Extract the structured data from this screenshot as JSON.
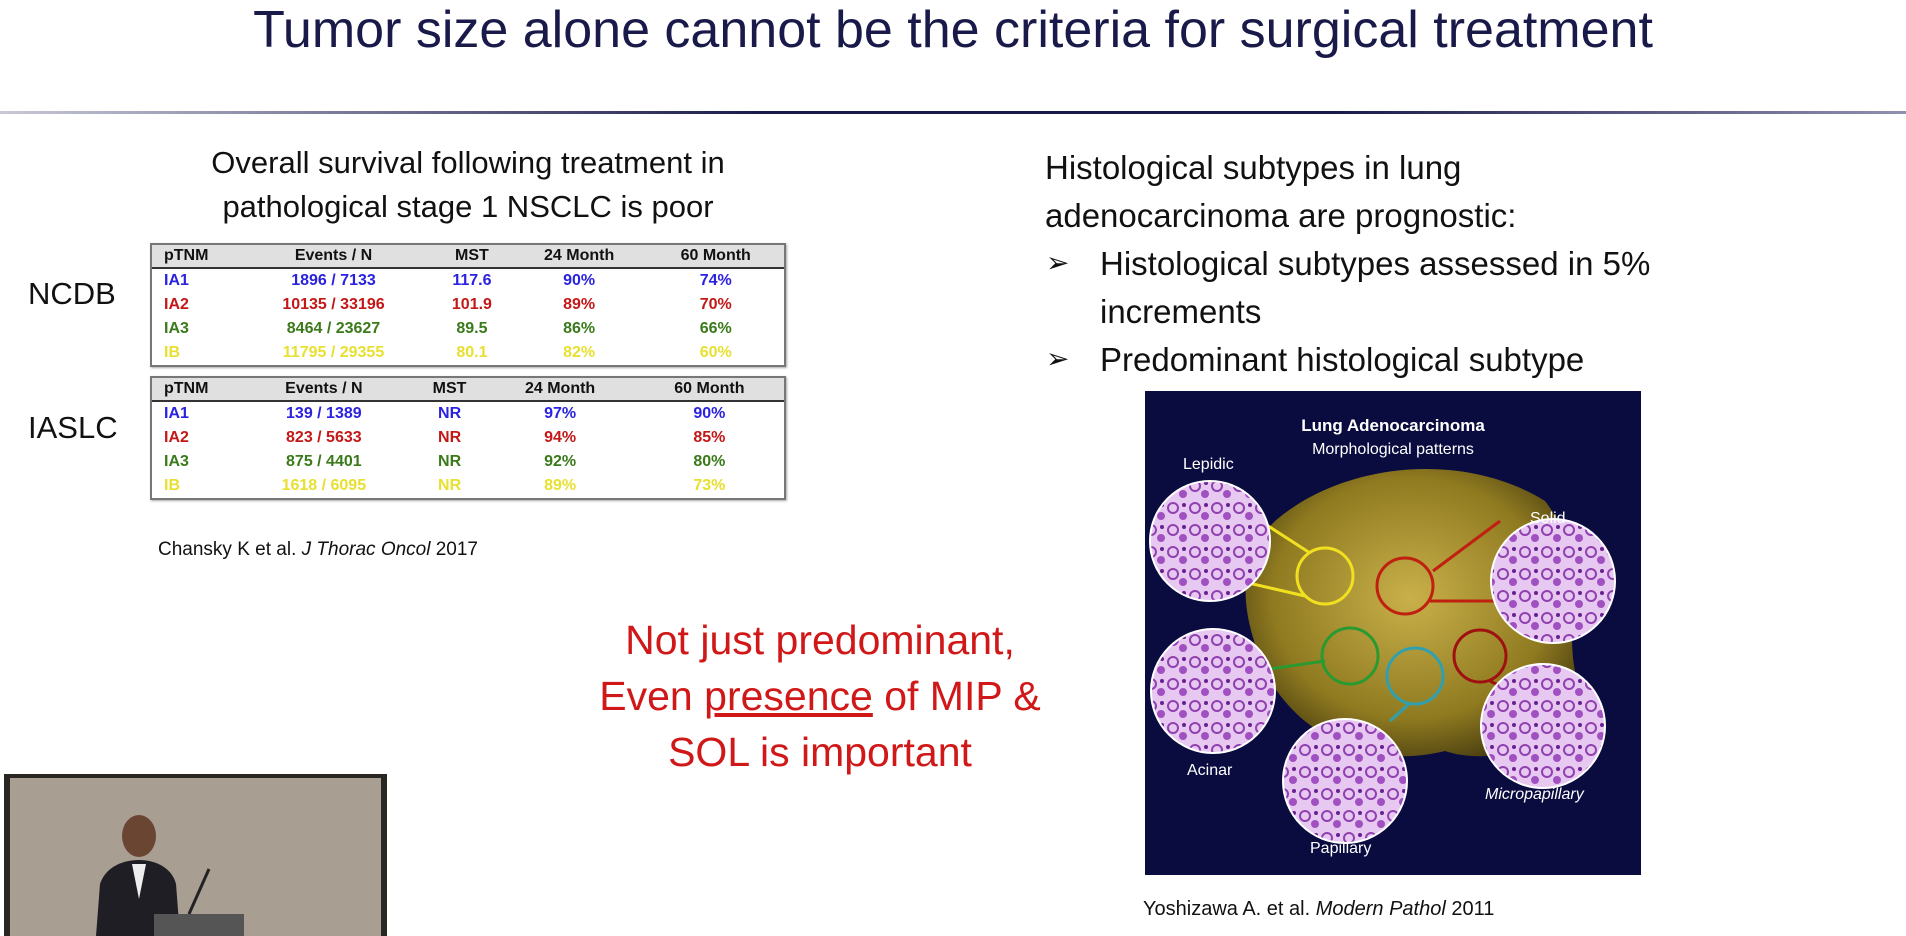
{
  "header": {
    "title": "Tumor size alone cannot be the criteria for surgical treatment"
  },
  "left": {
    "heading_lines": [
      "Overall survival following treatment in",
      "pathological stage 1 NSCLC is poor"
    ],
    "tables": [
      {
        "label": "NCDB",
        "columns": [
          "pTNM",
          "Events / N",
          "MST",
          "24 Month",
          "60 Month"
        ],
        "rows": [
          [
            "IA1",
            "1896 / 7133",
            "117.6",
            "90%",
            "74%"
          ],
          [
            "IA2",
            "10135 / 33196",
            "101.9",
            "89%",
            "70%"
          ],
          [
            "IA3",
            "8464 / 23627",
            "89.5",
            "86%",
            "66%"
          ],
          [
            "IB",
            "11795 / 29355",
            "80.1",
            "82%",
            "60%"
          ]
        ]
      },
      {
        "label": "IASLC",
        "columns": [
          "pTNM",
          "Events / N",
          "MST",
          "24 Month",
          "60 Month"
        ],
        "rows": [
          [
            "IA1",
            "139 / 1389",
            "NR",
            "97%",
            "90%"
          ],
          [
            "IA2",
            "823 / 5633",
            "NR",
            "94%",
            "85%"
          ],
          [
            "IA3",
            "875 / 4401",
            "NR",
            "92%",
            "80%"
          ],
          [
            "IB",
            "1618 / 6095",
            "NR",
            "89%",
            "73%"
          ]
        ]
      }
    ],
    "citation": {
      "authors": "Chansky K et al.",
      "journal": "J Thorac Oncol",
      "year": "2017"
    }
  },
  "right": {
    "heading_lines": [
      "Histological subtypes in lung",
      "adenocarcinoma are prognostic:"
    ],
    "bullets": [
      "Histological subtypes assessed in 5% increments",
      "Predominant histological subtype"
    ],
    "figure": {
      "title": "Lung Adenocarcinoma",
      "subtitle": "Morphological patterns",
      "labels": [
        "Lepidic",
        "Solid",
        "Acinar",
        "Papillary",
        "Micropapillary"
      ]
    },
    "citation": {
      "authors": "Yoshizawa A. et al.",
      "journal": "Modern Pathol",
      "year": "2011"
    }
  },
  "note": {
    "line1": "Not just predominant,",
    "line2_before": "Even",
    "line2_emphasis": "presence",
    "line2_after": "of MIP &",
    "line3": "SOL is important"
  }
}
